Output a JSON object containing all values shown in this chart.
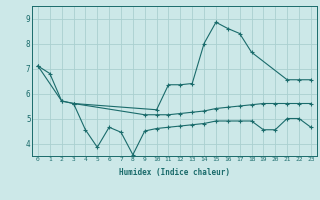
{
  "title": "",
  "xlabel": "Humidex (Indice chaleur)",
  "bg_color": "#cce8e8",
  "line_color": "#1a6b6b",
  "grid_color": "#aad0d0",
  "xlim": [
    -0.5,
    23.5
  ],
  "ylim": [
    3.5,
    9.5
  ],
  "yticks": [
    4,
    5,
    6,
    7,
    8,
    9
  ],
  "xticks": [
    0,
    1,
    2,
    3,
    4,
    5,
    6,
    7,
    8,
    9,
    10,
    11,
    12,
    13,
    14,
    15,
    16,
    17,
    18,
    19,
    20,
    21,
    22,
    23
  ],
  "line1_x": [
    0,
    1,
    2,
    3,
    10,
    11,
    12,
    13,
    14,
    15,
    16,
    17,
    18,
    21,
    22,
    23
  ],
  "line1_y": [
    7.1,
    6.8,
    5.7,
    5.6,
    5.35,
    6.35,
    6.35,
    6.4,
    8.0,
    8.85,
    8.6,
    8.4,
    7.65,
    6.55,
    6.55,
    6.55
  ],
  "line2_x": [
    0,
    2,
    3,
    9,
    10,
    11,
    12,
    13,
    14,
    15,
    16,
    17,
    18,
    19,
    20,
    21,
    22,
    23
  ],
  "line2_y": [
    7.1,
    5.7,
    5.6,
    5.15,
    5.15,
    5.15,
    5.2,
    5.25,
    5.3,
    5.4,
    5.45,
    5.5,
    5.55,
    5.6,
    5.6,
    5.6,
    5.6,
    5.6
  ],
  "line3_x": [
    3,
    4,
    5,
    6,
    7,
    8,
    9,
    10,
    11,
    12,
    13,
    14,
    15,
    16,
    17,
    18,
    19,
    20,
    21,
    22,
    23
  ],
  "line3_y": [
    5.6,
    4.55,
    3.85,
    4.65,
    4.45,
    3.55,
    4.5,
    4.6,
    4.65,
    4.7,
    4.75,
    4.8,
    4.9,
    4.9,
    4.9,
    4.9,
    4.55,
    4.55,
    5.0,
    5.0,
    4.65
  ]
}
